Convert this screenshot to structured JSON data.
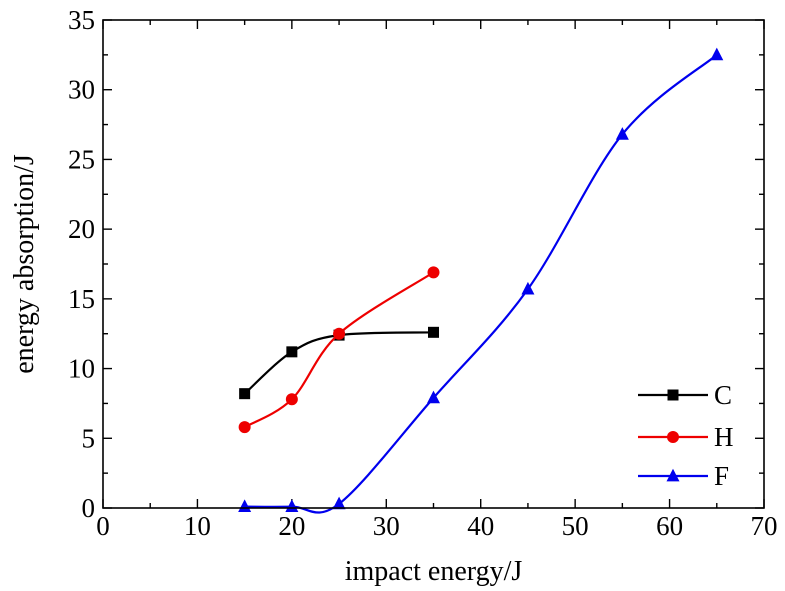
{
  "chart_data": {
    "type": "line",
    "title": "",
    "xlabel": "impact energy/J",
    "ylabel": "energy absorption/J",
    "xlim": [
      0,
      70
    ],
    "ylim": [
      0,
      35
    ],
    "x_ticks": [
      "0",
      "10",
      "20",
      "30",
      "40",
      "50",
      "60",
      "70"
    ],
    "y_ticks": [
      "0",
      "5",
      "10",
      "15",
      "20",
      "25",
      "30",
      "35"
    ],
    "grid": false,
    "legend_position": "bottom-right",
    "series": [
      {
        "name": "C",
        "color": "#000000",
        "marker": "square",
        "x": [
          15,
          20,
          25,
          35
        ],
        "y": [
          8.2,
          11.2,
          12.4,
          12.6
        ]
      },
      {
        "name": "H",
        "color": "#ee0000",
        "marker": "circle",
        "x": [
          15,
          20,
          25,
          35
        ],
        "y": [
          5.8,
          7.8,
          12.5,
          16.9
        ]
      },
      {
        "name": "F",
        "color": "#0000ee",
        "marker": "triangle",
        "x": [
          15,
          20,
          25,
          35,
          45,
          55,
          65
        ],
        "y": [
          0.1,
          0.1,
          0.3,
          7.9,
          15.7,
          26.8,
          32.5
        ]
      }
    ]
  }
}
